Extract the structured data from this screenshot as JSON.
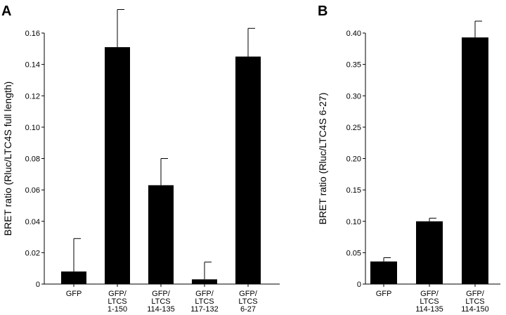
{
  "chart_data": [
    {
      "type": "bar",
      "panel_label": "A",
      "ylabel": "BRET ratio (Rluc/LTC4S full length)",
      "ylim": [
        0,
        0.16
      ],
      "yticks": [
        "0",
        "0.02",
        "0.04",
        "0.06",
        "0.08",
        "0.10",
        "0.12",
        "0.14",
        "0.16"
      ],
      "ytick_values": [
        0,
        0.02,
        0.04,
        0.06,
        0.08,
        0.1,
        0.12,
        0.14,
        0.16
      ],
      "categories": [
        [
          "GFP"
        ],
        [
          "GFP/",
          "LTCS",
          "1-150"
        ],
        [
          "GFP/",
          "LTCS",
          "114-135"
        ],
        [
          "GFP/",
          "LTCS",
          "117-132"
        ],
        [
          "GFP/",
          "LTCS",
          "6-27"
        ]
      ],
      "values": [
        0.008,
        0.151,
        0.063,
        0.003,
        0.145
      ],
      "errors": [
        0.021,
        0.024,
        0.017,
        0.011,
        0.018
      ],
      "bar_color": "#000000"
    },
    {
      "type": "bar",
      "panel_label": "B",
      "ylabel": "BRET ratio (Rluc/LTC4S 6-27)",
      "ylim": [
        0,
        0.4
      ],
      "yticks": [
        "0",
        "0.05",
        "0.10",
        "0.15",
        "0.20",
        "0.25",
        "0.30",
        "0.35",
        "0.40"
      ],
      "ytick_values": [
        0,
        0.05,
        0.1,
        0.15,
        0.2,
        0.25,
        0.3,
        0.35,
        0.4
      ],
      "categories": [
        [
          "GFP"
        ],
        [
          "GFP/",
          "LTCS",
          "114-135"
        ],
        [
          "GFP/",
          "LTCS",
          "114-150"
        ]
      ],
      "values": [
        0.036,
        0.1,
        0.393
      ],
      "errors": [
        0.006,
        0.005,
        0.026
      ],
      "bar_color": "#000000"
    }
  ]
}
